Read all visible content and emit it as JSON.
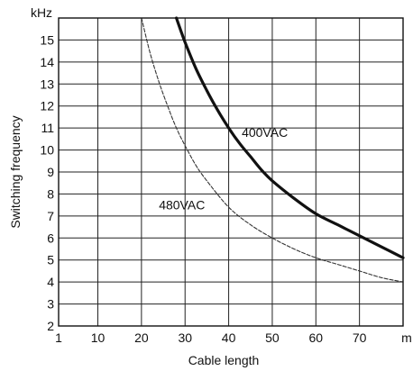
{
  "chart_data": {
    "type": "line",
    "title": "",
    "xlabel": "Cable length",
    "ylabel": "Switching frequency",
    "x_unit_label": "m",
    "y_unit_label": "kHz",
    "xlim": [
      1,
      80
    ],
    "ylim": [
      2,
      16
    ],
    "x_ticks": [
      {
        "value": 1,
        "label": "1"
      },
      {
        "value": 10,
        "label": "10"
      },
      {
        "value": 20,
        "label": "20"
      },
      {
        "value": 30,
        "label": "30"
      },
      {
        "value": 40,
        "label": "40"
      },
      {
        "value": 50,
        "label": "50"
      },
      {
        "value": 60,
        "label": "60"
      },
      {
        "value": 70,
        "label": "70"
      }
    ],
    "y_ticks": [
      {
        "value": 2,
        "label": "2"
      },
      {
        "value": 3,
        "label": "3"
      },
      {
        "value": 4,
        "label": "4"
      },
      {
        "value": 5,
        "label": "5"
      },
      {
        "value": 6,
        "label": "6"
      },
      {
        "value": 7,
        "label": "7"
      },
      {
        "value": 8,
        "label": "8"
      },
      {
        "value": 9,
        "label": "9"
      },
      {
        "value": 10,
        "label": "10"
      },
      {
        "value": 11,
        "label": "11"
      },
      {
        "value": 12,
        "label": "12"
      },
      {
        "value": 13,
        "label": "13"
      },
      {
        "value": 14,
        "label": "14"
      },
      {
        "value": 15,
        "label": "15"
      }
    ],
    "grid": true,
    "series": [
      {
        "name": "400VAC",
        "style": "solid-thick",
        "color": "#111111",
        "x": [
          28,
          30,
          32.5,
          35,
          37.5,
          40,
          42.5,
          45,
          47.5,
          50,
          55,
          60,
          65,
          70,
          75,
          80
        ],
        "y": [
          16.0,
          14.9,
          13.7,
          12.7,
          11.8,
          11.0,
          10.3,
          9.7,
          9.1,
          8.6,
          7.8,
          7.1,
          6.6,
          6.1,
          5.6,
          5.1
        ]
      },
      {
        "name": "480VAC",
        "style": "dashed-thin",
        "color": "#333333",
        "x": [
          20,
          22,
          24,
          26,
          28,
          30,
          32.5,
          35,
          40,
          45,
          50,
          55,
          60,
          65,
          70,
          75,
          80
        ],
        "y": [
          16.0,
          14.4,
          13.1,
          12.0,
          11.0,
          10.2,
          9.3,
          8.6,
          7.4,
          6.6,
          6.0,
          5.5,
          5.1,
          4.8,
          4.5,
          4.2,
          4.0
        ]
      }
    ]
  }
}
